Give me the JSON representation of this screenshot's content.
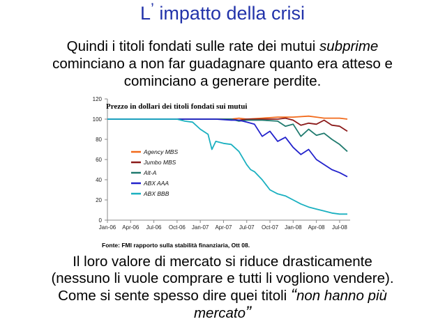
{
  "slide": {
    "title_l": "L",
    "title_apos": "’",
    "title_rest": "impatto della crisi",
    "para1_line1_a": "Quindi i titoli fondati sulle rate dei mutui ",
    "para1_line1_em": "subprime",
    "para1_line2": "cominciano a non far guadagnare quanto era atteso e",
    "para1_line3": "cominciano a generare perdite.",
    "para2_line1": "Il loro valore di mercato si riduce drasticamente",
    "para2_line2": "(nessuno li vuole comprare e tutti li vogliono vendere).",
    "para2_line3_a": "Come si sente spesso dire quei titoli ",
    "para2_open_quote": "“",
    "para2_line3_em": "non hanno più",
    "para2_line4_em": "mercato",
    "para2_close_quote": "”",
    "source": "Fonte: FMI rapporto sulla stabilità finanziaria, Ott 08."
  },
  "chart_data": {
    "type": "line",
    "title": "Prezzo in dollari dei titoli fondati sui mutui",
    "x_labels": [
      "Jan-06",
      "Apr-06",
      "Jul-06",
      "Oct-06",
      "Jan-07",
      "Apr-07",
      "Jul-07",
      "Oct-07",
      "Jan-08",
      "Apr-08",
      "Jul-08"
    ],
    "yticks": [
      "0",
      "20",
      "40",
      "60",
      "80",
      "100",
      "120"
    ],
    "ylim": [
      0,
      120
    ],
    "x_range_months": [
      0,
      31
    ],
    "legend_position": "center-left",
    "series": [
      {
        "name": "Agency MBS",
        "color": "#f26a1b",
        "points": [
          [
            0,
            100
          ],
          [
            6,
            100
          ],
          [
            12,
            100
          ],
          [
            16,
            100
          ],
          [
            17,
            101
          ],
          [
            18,
            100
          ],
          [
            20,
            101
          ],
          [
            22,
            102
          ],
          [
            24,
            102
          ],
          [
            26,
            103
          ],
          [
            27,
            102
          ],
          [
            28,
            101
          ],
          [
            29,
            101
          ],
          [
            30,
            101
          ],
          [
            31,
            100
          ]
        ]
      },
      {
        "name": "Jumbo MBS",
        "color": "#8b1a1a",
        "points": [
          [
            0,
            100
          ],
          [
            12,
            100
          ],
          [
            16,
            100
          ],
          [
            17,
            99
          ],
          [
            18,
            100
          ],
          [
            20,
            100
          ],
          [
            22,
            100
          ],
          [
            23,
            101
          ],
          [
            24,
            99
          ],
          [
            25,
            94
          ],
          [
            26,
            96
          ],
          [
            27,
            95
          ],
          [
            28,
            99
          ],
          [
            29,
            94
          ],
          [
            30,
            93
          ],
          [
            31,
            88
          ]
        ]
      },
      {
        "name": "Alt-A",
        "color": "#1f7a6e",
        "points": [
          [
            0,
            100
          ],
          [
            12,
            100
          ],
          [
            16,
            100
          ],
          [
            17,
            98
          ],
          [
            18,
            99
          ],
          [
            20,
            99
          ],
          [
            22,
            98
          ],
          [
            23,
            93
          ],
          [
            24,
            95
          ],
          [
            25,
            83
          ],
          [
            26,
            90
          ],
          [
            27,
            84
          ],
          [
            28,
            86
          ],
          [
            29,
            80
          ],
          [
            30,
            75
          ],
          [
            31,
            68
          ]
        ]
      },
      {
        "name": "ABX AAA",
        "color": "#2222cc",
        "points": [
          [
            0,
            100
          ],
          [
            6,
            100
          ],
          [
            12,
            100
          ],
          [
            14,
            100
          ],
          [
            16,
            99
          ],
          [
            17,
            99
          ],
          [
            18,
            97
          ],
          [
            19,
            95
          ],
          [
            20,
            83
          ],
          [
            21,
            88
          ],
          [
            22,
            78
          ],
          [
            23,
            82
          ],
          [
            24,
            72
          ],
          [
            25,
            65
          ],
          [
            26,
            70
          ],
          [
            27,
            60
          ],
          [
            28,
            55
          ],
          [
            29,
            50
          ],
          [
            30,
            47
          ],
          [
            31,
            43
          ]
        ]
      },
      {
        "name": "ABX BBB",
        "color": "#1ab0c0",
        "points": [
          [
            0,
            100
          ],
          [
            6,
            100
          ],
          [
            9,
            100
          ],
          [
            10,
            98
          ],
          [
            11,
            97
          ],
          [
            12,
            90
          ],
          [
            13,
            85
          ],
          [
            13.5,
            70
          ],
          [
            14,
            78
          ],
          [
            15,
            76
          ],
          [
            16,
            75
          ],
          [
            17,
            68
          ],
          [
            18,
            55
          ],
          [
            18.5,
            50
          ],
          [
            19,
            48
          ],
          [
            20,
            40
          ],
          [
            21,
            30
          ],
          [
            22,
            26
          ],
          [
            23,
            24
          ],
          [
            24,
            20
          ],
          [
            25,
            16
          ],
          [
            26,
            13
          ],
          [
            27,
            11
          ],
          [
            28,
            9
          ],
          [
            29,
            7
          ],
          [
            30,
            6
          ],
          [
            31,
            6
          ]
        ]
      }
    ]
  }
}
